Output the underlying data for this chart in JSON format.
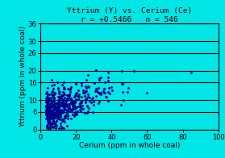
{
  "title_line1": "Yttrium (Y) vs. Cerium (Ce)",
  "title_line2": "r = +0.5466   n = 546",
  "xlabel": "Cerium (ppm in whole coal)",
  "ylabel": "Yttrium (ppm in whole coal)",
  "xlim": [
    0,
    100
  ],
  "ylim": [
    0,
    36
  ],
  "xticks": [
    0,
    20,
    40,
    60,
    80,
    100
  ],
  "yticks": [
    0,
    6,
    10,
    16,
    20,
    26,
    30,
    36
  ],
  "background_color": "#00E5E5",
  "plot_bg_color": "#00E5E5",
  "dot_color": "#00008B",
  "n_points": 546,
  "r": 0.5466,
  "title_fontsize": 6.8,
  "axis_label_fontsize": 6.5,
  "tick_fontsize": 6,
  "seed": 42
}
